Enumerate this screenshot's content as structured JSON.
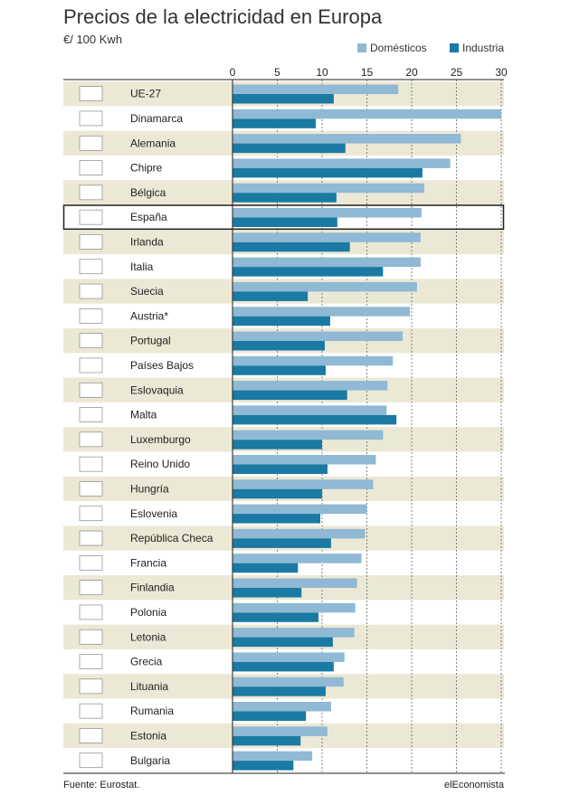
{
  "title": "Precios de la electricidad en Europa",
  "subtitle": "€/ 100 Kwh",
  "legend": [
    {
      "label": "Domésticos",
      "color": "#8fb9d4"
    },
    {
      "label": "Industria",
      "color": "#1a7aa3"
    }
  ],
  "footer": {
    "source_label": "Fuente: Eurostat.",
    "brand": "elEconomista"
  },
  "colors": {
    "row_band": "#ece8d6",
    "domestic": "#8fb9d4",
    "industry": "#1a7aa3",
    "highlight_border": "#222222"
  },
  "highlighted_country": "España",
  "chart_data": {
    "type": "bar",
    "orientation": "horizontal",
    "title": "Precios de la electricidad en Europa",
    "unit": "€/ 100 Kwh",
    "xlim": [
      0,
      30
    ],
    "xticks": [
      0,
      5,
      10,
      15,
      20,
      25,
      30
    ],
    "grid": true,
    "legend_position": "top-right",
    "categories": [
      "UE-27",
      "Dinamarca",
      "Alemania",
      "Chipre",
      "Bélgica",
      "España",
      "Irlanda",
      "Italia",
      "Suecia",
      "Austria*",
      "Portugal",
      "Países Bajos",
      "Eslovaquia",
      "Malta",
      "Luxemburgo",
      "Reino Unido",
      "Hungría",
      "Eslovenia",
      "República Checa",
      "Francia",
      "Finlandia",
      "Polonia",
      "Letonia",
      "Grecia",
      "Lituania",
      "Rumania",
      "Estonia",
      "Bulgaria"
    ],
    "series": [
      {
        "name": "Domésticos",
        "values": [
          18.5,
          30.0,
          25.5,
          24.3,
          21.4,
          21.1,
          21.0,
          21.0,
          20.6,
          19.8,
          19.0,
          17.9,
          17.3,
          17.2,
          16.8,
          16.0,
          15.7,
          15.0,
          14.8,
          14.4,
          13.9,
          13.7,
          13.6,
          12.5,
          12.4,
          11.0,
          10.6,
          8.9
        ]
      },
      {
        "name": "Industria",
        "values": [
          11.3,
          9.3,
          12.6,
          21.2,
          11.6,
          11.7,
          13.1,
          16.8,
          8.4,
          10.9,
          10.3,
          10.4,
          12.8,
          18.3,
          10.0,
          10.6,
          10.0,
          9.8,
          11.0,
          7.3,
          7.7,
          9.6,
          11.2,
          11.3,
          10.4,
          8.2,
          7.6,
          6.8
        ]
      }
    ]
  }
}
